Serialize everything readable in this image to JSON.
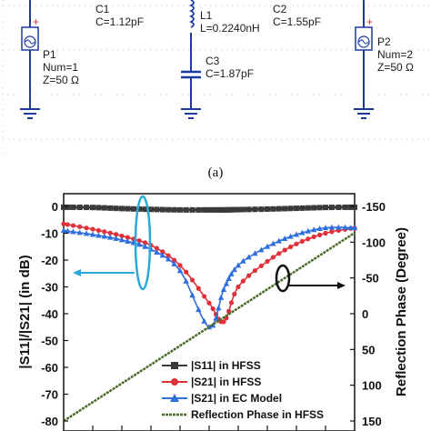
{
  "schematic": {
    "p1": {
      "name": "P1",
      "num": "Num=1",
      "z": "Z=50 Ω"
    },
    "c1": {
      "name": "C1",
      "value": "C=1.12pF"
    },
    "l1": {
      "name": "L1",
      "value": "L=0.2240nH"
    },
    "c2": {
      "name": "C2",
      "value": "C=1.55pF"
    },
    "c3": {
      "name": "C3",
      "value": "C=1.87pF"
    },
    "p2": {
      "name": "P2",
      "num": "Num=2",
      "z": "Z=50 Ω"
    },
    "caption": "(a)"
  },
  "colors": {
    "s11": "#3a3a3a",
    "s21_hfss": "#e0303a",
    "s21_ec": "#2f6fdd",
    "phase": "#4a6b2a",
    "ellipse": "#2aa8d8"
  },
  "chart_data": {
    "type": "line",
    "ylabel": "|S11|/|S21| (in dB)",
    "y2label": "Reflection Phase (Degree)",
    "ylim": [
      -80,
      0
    ],
    "y2lim": [
      150,
      -150
    ],
    "y2_reversed": true,
    "y_ticks": [
      "0",
      "-10",
      "-20",
      "-30",
      "-40",
      "-50",
      "-60",
      "-70",
      "-80"
    ],
    "y2_ticks": [
      "-150",
      "-100",
      "-50",
      "0",
      "50",
      "100",
      "150"
    ],
    "x_normalized": [
      0,
      0.1,
      0.2,
      0.3,
      0.4,
      0.5,
      0.55,
      0.6,
      0.7,
      0.8,
      0.9,
      1.0
    ],
    "series": [
      {
        "name": "|S11| in HFSS",
        "axis": "left",
        "marker": "square",
        "values": [
          -0.3,
          -0.4,
          -0.8,
          -1.1,
          -1.3,
          -1.3,
          -1.3,
          -1.2,
          -1.0,
          -0.7,
          -0.4,
          -0.3
        ]
      },
      {
        "name": "|S21| in HFSS",
        "axis": "left",
        "marker": "circle",
        "values": [
          -6.5,
          -8.5,
          -11.0,
          -14.5,
          -22.0,
          -36.0,
          -43.0,
          -30.0,
          -20.5,
          -14.0,
          -10.0,
          -8.0
        ]
      },
      {
        "name": "|S21| in EC Model",
        "axis": "left",
        "marker": "triangle",
        "values": [
          -9.0,
          -10.5,
          -12.5,
          -16.0,
          -24.0,
          -45.0,
          -31.0,
          -22.0,
          -15.0,
          -10.5,
          -8.0,
          -8.0
        ]
      },
      {
        "name": "Reflection Phase in HFSS",
        "axis": "right",
        "marker": "none",
        "values": [
          150,
          120,
          92,
          66,
          41,
          17,
          5,
          -6,
          -30,
          -57,
          -85,
          -113
        ]
      }
    ]
  }
}
